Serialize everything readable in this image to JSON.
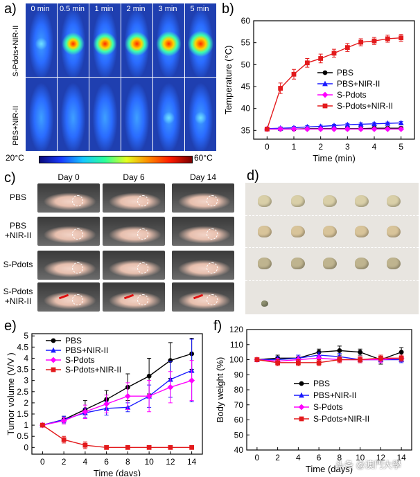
{
  "panels": {
    "a": "a)",
    "b": "b)",
    "c": "c)",
    "d": "d)",
    "e": "e)",
    "f": "f)"
  },
  "panel_a": {
    "time_labels": [
      "0 min",
      "0.5 min",
      "1 min",
      "2 min",
      "3 min",
      "5 min"
    ],
    "row_labels": [
      "S-Pdots+NIR-II",
      "PBS+NIR-II"
    ],
    "hotspot_intensity": {
      "S-Pdots+NIR-II": [
        0.15,
        0.55,
        0.7,
        0.8,
        0.85,
        0.95
      ],
      "PBS+NIR-II": [
        0.05,
        0.08,
        0.1,
        0.1,
        0.12,
        0.12
      ]
    },
    "colorbar_min": "20°C",
    "colorbar_max": "60°C"
  },
  "panel_c": {
    "day_labels": [
      "Day 0",
      "Day 6",
      "Day 14"
    ],
    "groups": [
      "PBS",
      "PBS\n+NIR-II",
      "S-Pdots",
      "S-Pdots\n+NIR-II"
    ]
  },
  "chart_data": [
    {
      "type": "line",
      "panel": "b",
      "xlabel": "Time (min)",
      "ylabel": "Temperature (°C)",
      "xlim": [
        -0.5,
        5.5
      ],
      "ylim": [
        33,
        60
      ],
      "xticks": [
        0,
        1,
        2,
        3,
        4,
        5
      ],
      "yticks": [
        35,
        40,
        45,
        50,
        55,
        60
      ],
      "legend_placement": "center-right",
      "x": [
        0,
        0.5,
        1,
        1.5,
        2,
        2.5,
        3,
        3.5,
        4,
        4.5,
        5
      ],
      "series": [
        {
          "name": "PBS",
          "color": "#000000",
          "marker": "circle",
          "values": [
            35.3,
            35.3,
            35.3,
            35.4,
            35.4,
            35.4,
            35.4,
            35.4,
            35.5,
            35.5,
            35.5
          ],
          "err": [
            0.3,
            0.3,
            0.3,
            0.3,
            0.3,
            0.3,
            0.3,
            0.3,
            0.3,
            0.3,
            0.3
          ]
        },
        {
          "name": "PBS+NIR-II",
          "color": "#1a1aff",
          "marker": "triangle",
          "values": [
            35.4,
            35.5,
            35.6,
            35.8,
            35.9,
            36.1,
            36.3,
            36.4,
            36.5,
            36.6,
            36.7
          ],
          "err": [
            0.3,
            0.3,
            0.3,
            0.3,
            0.3,
            0.3,
            0.3,
            0.3,
            0.3,
            0.3,
            0.3
          ]
        },
        {
          "name": "S-Pdots",
          "color": "#ff00ff",
          "marker": "diamond",
          "values": [
            35.3,
            35.3,
            35.3,
            35.3,
            35.3,
            35.3,
            35.3,
            35.3,
            35.3,
            35.3,
            35.3
          ],
          "err": [
            0.2,
            0.2,
            0.2,
            0.2,
            0.2,
            0.2,
            0.2,
            0.2,
            0.2,
            0.2,
            0.2
          ]
        },
        {
          "name": "S-Pdots+NIR-II",
          "color": "#e31a1c",
          "marker": "square",
          "values": [
            35.3,
            44.6,
            47.8,
            50.4,
            51.4,
            52.6,
            53.9,
            55.1,
            55.4,
            55.9,
            56.1
          ],
          "err": [
            0.4,
            1.2,
            1.1,
            1.0,
            1.0,
            0.9,
            0.9,
            0.8,
            0.8,
            0.8,
            0.8
          ]
        }
      ]
    },
    {
      "type": "line",
      "panel": "e",
      "xlabel": "Time (days)",
      "ylabel": "Tumor volume (V/V )",
      "xlim": [
        -1,
        15
      ],
      "ylim": [
        -0.3,
        5.1
      ],
      "xticks": [
        0,
        2,
        4,
        6,
        8,
        10,
        12,
        14
      ],
      "yticks": [
        0,
        0.5,
        1,
        1.5,
        2,
        2.5,
        3,
        3.5,
        4,
        4.5,
        5
      ],
      "legend_placement": "top-left",
      "x": [
        0,
        2,
        4,
        6,
        8,
        10,
        12,
        14
      ],
      "series": [
        {
          "name": "PBS",
          "color": "#000000",
          "marker": "circle",
          "values": [
            1.0,
            1.25,
            1.7,
            2.15,
            2.7,
            3.2,
            3.9,
            4.2
          ],
          "err": [
            0.05,
            0.15,
            0.4,
            0.4,
            0.6,
            0.8,
            0.8,
            0.7
          ]
        },
        {
          "name": "PBS+NIR-II",
          "color": "#1a1aff",
          "marker": "triangle",
          "values": [
            1.0,
            1.25,
            1.55,
            1.75,
            1.8,
            2.3,
            3.05,
            3.45
          ],
          "err": [
            0.05,
            0.15,
            0.2,
            0.3,
            0.2,
            0.5,
            0.8,
            1.4
          ]
        },
        {
          "name": "S-Pdots",
          "color": "#ff00ff",
          "marker": "diamond",
          "values": [
            1.0,
            1.2,
            1.6,
            1.95,
            2.3,
            2.3,
            2.7,
            3.0
          ],
          "err": [
            0.05,
            0.15,
            0.3,
            0.4,
            0.6,
            0.7,
            0.7,
            0.9
          ]
        },
        {
          "name": "S-Pdots+NIR-II",
          "color": "#e31a1c",
          "marker": "square",
          "values": [
            1.0,
            0.35,
            0.1,
            0.0,
            0.0,
            0.0,
            0.0,
            0.0
          ],
          "err": [
            0.05,
            0.15,
            0.15,
            0,
            0,
            0,
            0,
            0
          ]
        }
      ]
    },
    {
      "type": "line",
      "panel": "f",
      "xlabel": "Time (days)",
      "ylabel": "Body weight (%)",
      "xlim": [
        -1,
        15
      ],
      "ylim": [
        40,
        120
      ],
      "xticks": [
        0,
        2,
        4,
        6,
        8,
        10,
        12,
        14
      ],
      "yticks": [
        40,
        50,
        60,
        70,
        80,
        90,
        100,
        110,
        120
      ],
      "legend_placement": "center-left",
      "x": [
        0,
        2,
        4,
        6,
        8,
        10,
        12,
        14
      ],
      "series": [
        {
          "name": "PBS",
          "color": "#000000",
          "marker": "circle",
          "values": [
            100,
            101,
            101,
            105,
            106,
            105,
            100,
            105
          ],
          "err": [
            0.5,
            2,
            2,
            2,
            3,
            2,
            3,
            3
          ]
        },
        {
          "name": "PBS+NIR-II",
          "color": "#1a1aff",
          "marker": "triangle",
          "values": [
            100,
            100,
            101,
            103,
            102,
            100,
            100,
            100
          ],
          "err": [
            0.5,
            2,
            2,
            2,
            2,
            2,
            2,
            2
          ]
        },
        {
          "name": "S-Pdots",
          "color": "#ff00ff",
          "marker": "diamond",
          "values": [
            100,
            99,
            100,
            101,
            100,
            100,
            100,
            101
          ],
          "err": [
            0.5,
            2,
            2,
            2,
            2,
            2,
            2,
            2
          ]
        },
        {
          "name": "S-Pdots+NIR-II",
          "color": "#e31a1c",
          "marker": "square",
          "values": [
            100,
            98,
            98,
            98,
            100,
            100,
            101,
            101
          ],
          "err": [
            0.5,
            2,
            2,
            2,
            2,
            2,
            2,
            2
          ]
        }
      ]
    }
  ],
  "watermark": "头条 @澳門大學"
}
